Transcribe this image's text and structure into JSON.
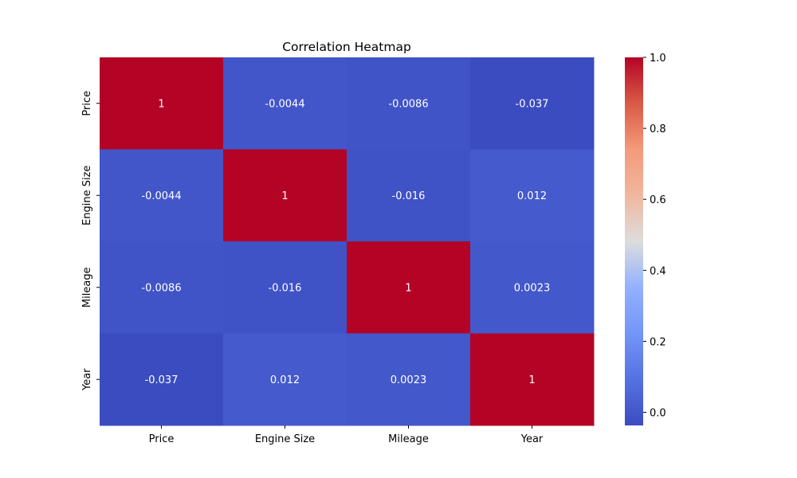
{
  "chart_data": {
    "type": "heatmap",
    "title": "Correlation Heatmap",
    "x_categories": [
      "Price",
      "Engine Size",
      "Mileage",
      "Year"
    ],
    "y_categories": [
      "Price",
      "Engine Size",
      "Mileage",
      "Year"
    ],
    "values": [
      [
        1,
        -0.0044,
        -0.0086,
        -0.037
      ],
      [
        -0.0044,
        1,
        -0.016,
        0.012
      ],
      [
        -0.0086,
        -0.016,
        1,
        0.0023
      ],
      [
        -0.037,
        0.012,
        0.0023,
        1
      ]
    ],
    "cell_labels": [
      [
        "1",
        "-0.0044",
        "-0.0086",
        "-0.037"
      ],
      [
        "-0.0044",
        "1",
        "-0.016",
        "0.012"
      ],
      [
        "-0.0086",
        "-0.016",
        "1",
        "0.0023"
      ],
      [
        "-0.037",
        "0.012",
        "0.0023",
        "1"
      ]
    ],
    "colormap": "coolwarm",
    "colorbar": {
      "range": [
        -0.037,
        1.0
      ],
      "ticks": [
        0.0,
        0.2,
        0.4,
        0.6,
        0.8,
        1.0
      ],
      "tick_labels": [
        "0.0",
        "0.2",
        "0.4",
        "0.6",
        "0.8",
        "1.0"
      ]
    },
    "xlabel": "",
    "ylabel": "",
    "grid": false,
    "legend": "colorbar-right"
  }
}
